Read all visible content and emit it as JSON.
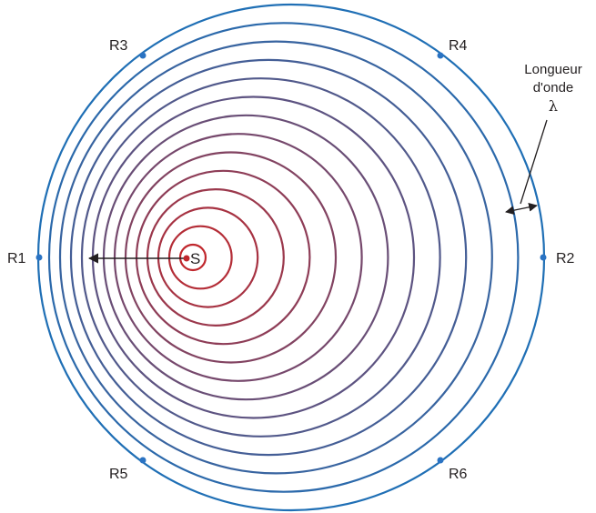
{
  "source": {
    "label": "S",
    "color": "#c0272d"
  },
  "receivers": [
    {
      "label": "R1"
    },
    {
      "label": "R2"
    },
    {
      "label": "R3"
    },
    {
      "label": "R4"
    },
    {
      "label": "R5"
    },
    {
      "label": "R6"
    }
  ],
  "wavelength_label": {
    "line1": "Longueur",
    "line2": "d'onde",
    "symbol": "λ"
  },
  "colors": {
    "inner_wavefront": "#c0272d",
    "outer_wavefront": "#1f6fb5",
    "receiver_dot": "#2a73c3",
    "text": "#231f20"
  },
  "wavefront_count": 14
}
